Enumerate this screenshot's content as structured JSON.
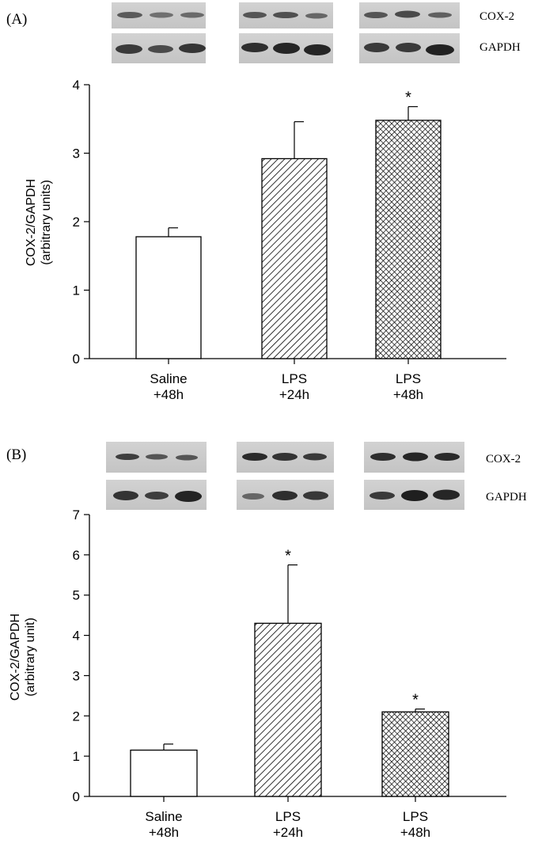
{
  "figure": {
    "panels": [
      {
        "id": "A",
        "label": "(A)",
        "blot_labels": [
          "COX-2",
          "GAPDH"
        ]
      },
      {
        "id": "B",
        "label": "(B)",
        "blot_labels": [
          "COX-2",
          "GAPDH"
        ]
      }
    ]
  },
  "chart_data": [
    {
      "type": "bar",
      "panel": "A",
      "title": "",
      "xlabel": "",
      "ylabel": [
        "COX-2/GAPDH",
        "(arbitrary units)"
      ],
      "categories": [
        [
          "Saline",
          "+48h"
        ],
        [
          "LPS",
          "+24h"
        ],
        [
          "LPS",
          "+48h"
        ]
      ],
      "values": [
        1.78,
        2.92,
        3.48
      ],
      "errors": [
        0.13,
        0.54,
        0.2
      ],
      "significance": [
        "",
        "",
        "*"
      ],
      "fills": [
        "open",
        "diagonal-hatch",
        "cross-hatch"
      ],
      "ylim": [
        0,
        4
      ],
      "yticks": [
        0,
        1,
        2,
        3,
        4
      ],
      "grid": false
    },
    {
      "type": "bar",
      "panel": "B",
      "title": "",
      "xlabel": "",
      "ylabel": [
        "COX-2/GAPDH",
        "(arbitrary unit)"
      ],
      "categories": [
        [
          "Saline",
          "+48h"
        ],
        [
          "LPS",
          "+24h"
        ],
        [
          "LPS",
          "+48h"
        ]
      ],
      "values": [
        1.15,
        4.3,
        2.1
      ],
      "errors": [
        0.15,
        1.45,
        0.07
      ],
      "significance": [
        "",
        "*",
        "*"
      ],
      "fills": [
        "open",
        "diagonal-hatch",
        "cross-hatch"
      ],
      "ylim": [
        0,
        7
      ],
      "yticks": [
        0,
        1,
        2,
        3,
        4,
        5,
        6,
        7
      ],
      "grid": false
    }
  ]
}
